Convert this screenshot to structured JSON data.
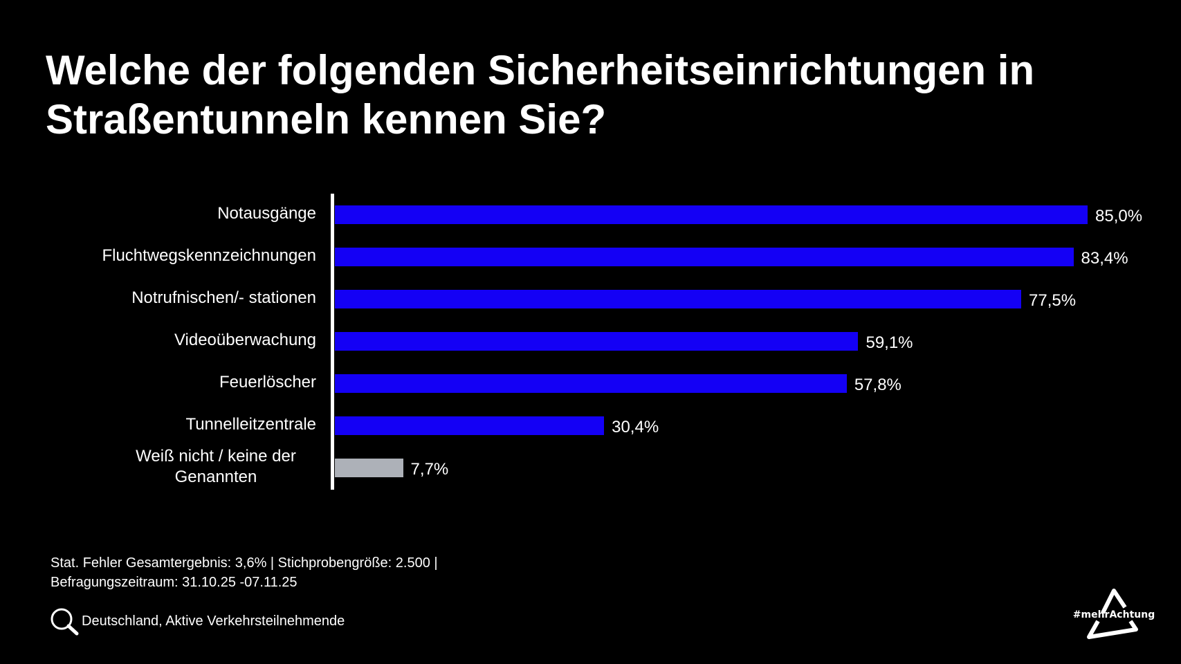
{
  "chart_data": {
    "type": "bar",
    "orientation": "horizontal",
    "title": "Welche der folgenden Sicherheitseinrichtungen in Straßentunneln kennen Sie?",
    "categories": [
      "Notausgänge",
      "Fluchtwegskennzeichnungen",
      "Notrufnischen/- stationen",
      "Videoüberwachung",
      "Feuerlöscher",
      "Tunnelleitzentrale",
      "Weiß nicht / keine der Genannten"
    ],
    "values": [
      85.0,
      83.4,
      77.5,
      59.1,
      57.8,
      30.4,
      7.7
    ],
    "value_labels": [
      "85,0%",
      "83,4%",
      "77,5%",
      "59,1%",
      "57,8%",
      "30,4%",
      "7,7%"
    ],
    "bar_colors": [
      "#1400f5",
      "#1400f5",
      "#1400f5",
      "#1400f5",
      "#1400f5",
      "#1400f5",
      "#adb1b8"
    ],
    "unit": "%",
    "grid": false,
    "legend": "none"
  },
  "footer": {
    "line1": "Stat. Fehler Gesamtergebnis: 3,6% | Stichprobengröße: 2.500 |",
    "line2": "Befragungszeitraum: 31.10.25 -07.11.25",
    "population": "Deutschland, Aktive Verkehrsteilnehmende",
    "population_icon": "search-icon"
  },
  "logo": {
    "text": "#mehrAchtung"
  }
}
